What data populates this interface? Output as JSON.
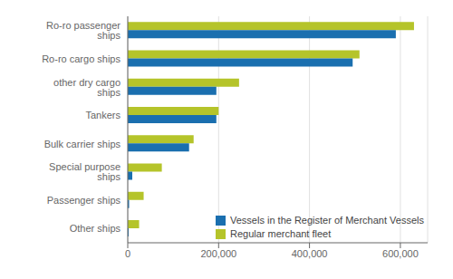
{
  "chart_data": {
    "type": "bar",
    "orientation": "horizontal",
    "categories": [
      "Other ships",
      "Passenger ships",
      "Special purpose ships",
      "Bulk carrier ships",
      "Tankers",
      "other dry cargo ships",
      "Ro-ro cargo ships",
      "Ro-ro passenger ships"
    ],
    "series": [
      {
        "name": "Vessels in the Register of Merchant Vessels",
        "color": "#1a6faf",
        "values": [
          2000,
          3000,
          10000,
          135000,
          195000,
          195000,
          495000,
          590000
        ]
      },
      {
        "name": "Regular merchant fleet",
        "color": "#b5c42a",
        "values": [
          25000,
          35000,
          75000,
          145000,
          200000,
          245000,
          510000,
          630000
        ]
      }
    ],
    "xlim": [
      0,
      660000
    ],
    "xticks": [
      0,
      {
        "value": 200000,
        "label": "200,000"
      },
      {
        "value": 400000,
        "label": "400,000"
      },
      {
        "value": 600000,
        "label": "600,000"
      }
    ],
    "grid": true,
    "legend": "lower right"
  }
}
